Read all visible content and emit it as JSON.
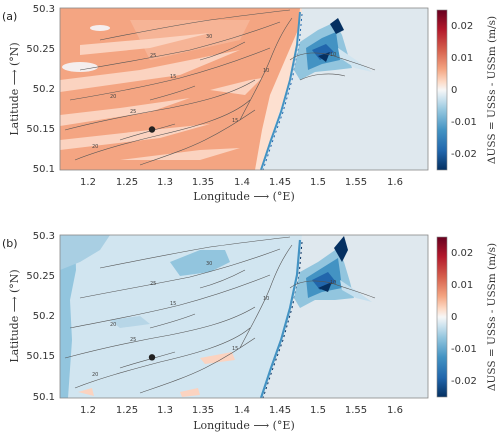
{
  "chart_data": [
    {
      "panel": "(a)",
      "type": "heatmap",
      "xlabel": "Longitude ⟶ (°E)",
      "ylabel": "Latitude ⟶ (°N)",
      "xticks": [
        "1.2",
        "1.25",
        "1.3",
        "1.35",
        "1.4",
        "1.45",
        "1.5",
        "1.55",
        "1.6"
      ],
      "yticks": [
        "50.3",
        "50.25",
        "50.2",
        "50.15",
        "50.1"
      ],
      "xlim": [
        1.16,
        1.64
      ],
      "ylim": [
        50.1,
        50.3
      ],
      "marker": {
        "lon": 1.28,
        "lat": 50.15
      },
      "colorbar": {
        "label": "ΔUSS = USSs - USSm (m/s)",
        "ticks": [
          "0.02",
          "0.01",
          "0",
          "-0.01",
          "-0.02"
        ],
        "range": [
          -0.025,
          0.025
        ]
      },
      "contour_labels": [
        "15",
        "20",
        "25",
        "30",
        "10"
      ],
      "dominant_value": 0.006
    },
    {
      "panel": "(b)",
      "type": "heatmap",
      "xlabel": "Longitude ⟶ (°E)",
      "ylabel": "Latitude ⟶ (°N)",
      "xticks": [
        "1.2",
        "1.25",
        "1.3",
        "1.35",
        "1.4",
        "1.45",
        "1.5",
        "1.55",
        "1.6"
      ],
      "yticks": [
        "50.3",
        "50.25",
        "50.2",
        "50.15",
        "50.1"
      ],
      "xlim": [
        1.16,
        1.64
      ],
      "ylim": [
        50.1,
        50.3
      ],
      "marker": {
        "lon": 1.28,
        "lat": 50.15
      },
      "colorbar": {
        "label": "ΔUSS = USSs - USSm (m/s)",
        "ticks": [
          "0.02",
          "0.01",
          "0",
          "-0.01",
          "-0.02"
        ],
        "range": [
          -0.025,
          0.025
        ]
      },
      "contour_labels": [
        "15",
        "20",
        "25",
        "30",
        "10"
      ],
      "dominant_value": -0.002
    }
  ],
  "colors": {
    "positive_fill": "#f4a582",
    "positive_light": "#fde0d0",
    "negative_light": "#d1e5f0",
    "negative_mid": "#92c5de",
    "negative_dark": "#2166ac",
    "negative_darkest": "#053061",
    "positive_darkest": "#67001f",
    "land": "#dfe8ee"
  }
}
